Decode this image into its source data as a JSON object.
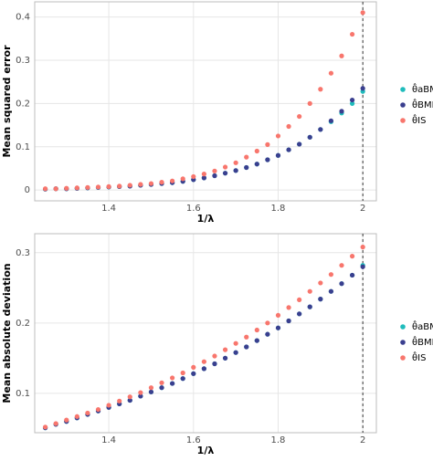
{
  "chart_data": [
    {
      "type": "scatter",
      "x_label": "1/λ",
      "y_label": "Mean squared error",
      "x": [
        1.25,
        1.275,
        1.3,
        1.325,
        1.35,
        1.375,
        1.4,
        1.425,
        1.45,
        1.475,
        1.5,
        1.525,
        1.55,
        1.575,
        1.6,
        1.625,
        1.65,
        1.675,
        1.7,
        1.725,
        1.75,
        1.775,
        1.8,
        1.825,
        1.85,
        1.875,
        1.9,
        1.925,
        1.95,
        1.975,
        2
      ],
      "series": [
        {
          "name": "θ̂aBMM",
          "color": "#1fbcbc",
          "values": [
            0.002,
            0.003,
            0.003,
            0.004,
            0.005,
            0.006,
            0.007,
            0.008,
            0.009,
            0.011,
            0.013,
            0.015,
            0.017,
            0.02,
            0.024,
            0.028,
            0.033,
            0.039,
            0.045,
            0.052,
            0.06,
            0.07,
            0.08,
            0.093,
            0.106,
            0.122,
            0.14,
            0.158,
            0.178,
            0.2,
            0.228
          ]
        },
        {
          "name": "θ̂BMM",
          "color": "#3a3f8f",
          "values": [
            0.002,
            0.003,
            0.003,
            0.004,
            0.005,
            0.006,
            0.007,
            0.008,
            0.009,
            0.011,
            0.013,
            0.015,
            0.017,
            0.02,
            0.024,
            0.028,
            0.033,
            0.039,
            0.045,
            0.052,
            0.06,
            0.07,
            0.08,
            0.093,
            0.106,
            0.122,
            0.14,
            0.16,
            0.182,
            0.208,
            0.235
          ]
        },
        {
          "name": "θ̂IS",
          "color": "#f8766d",
          "values": [
            0.003,
            0.003,
            0.004,
            0.005,
            0.006,
            0.007,
            0.008,
            0.009,
            0.011,
            0.013,
            0.015,
            0.018,
            0.021,
            0.026,
            0.031,
            0.037,
            0.044,
            0.053,
            0.063,
            0.076,
            0.09,
            0.105,
            0.125,
            0.147,
            0.17,
            0.2,
            0.233,
            0.27,
            0.31,
            0.36,
            0.41
          ]
        }
      ],
      "xlim": [
        1.225,
        2.032
      ],
      "xticks": [
        1.4,
        1.6,
        1.8,
        2
      ],
      "ylim": [
        -0.025,
        0.435
      ],
      "yticks": [
        0,
        0.1,
        0.2,
        0.3,
        0.4
      ],
      "vline": 2,
      "grid": true
    },
    {
      "type": "scatter",
      "x_label": "1/λ",
      "y_label": "Mean absolute deviation",
      "x": [
        1.25,
        1.275,
        1.3,
        1.325,
        1.35,
        1.375,
        1.4,
        1.425,
        1.45,
        1.475,
        1.5,
        1.525,
        1.55,
        1.575,
        1.6,
        1.625,
        1.65,
        1.675,
        1.7,
        1.725,
        1.75,
        1.775,
        1.8,
        1.825,
        1.85,
        1.875,
        1.9,
        1.925,
        1.95,
        1.975,
        2
      ],
      "series": [
        {
          "name": "θ̂aBMM",
          "color": "#1fbcbc",
          "values": [
            0.051,
            0.056,
            0.06,
            0.065,
            0.07,
            0.075,
            0.08,
            0.085,
            0.09,
            0.096,
            0.102,
            0.108,
            0.114,
            0.121,
            0.128,
            0.135,
            0.142,
            0.15,
            0.158,
            0.166,
            0.175,
            0.184,
            0.193,
            0.203,
            0.213,
            0.223,
            0.234,
            0.245,
            0.256,
            0.268,
            0.282
          ]
        },
        {
          "name": "θ̂BMM",
          "color": "#3a3f8f",
          "values": [
            0.051,
            0.056,
            0.06,
            0.065,
            0.07,
            0.075,
            0.08,
            0.085,
            0.09,
            0.096,
            0.102,
            0.108,
            0.114,
            0.121,
            0.128,
            0.135,
            0.142,
            0.15,
            0.158,
            0.166,
            0.175,
            0.184,
            0.193,
            0.203,
            0.213,
            0.223,
            0.234,
            0.245,
            0.256,
            0.268,
            0.28
          ]
        },
        {
          "name": "θ̂IS",
          "color": "#f8766d",
          "values": [
            0.052,
            0.057,
            0.062,
            0.067,
            0.072,
            0.077,
            0.083,
            0.089,
            0.095,
            0.101,
            0.108,
            0.115,
            0.122,
            0.129,
            0.137,
            0.145,
            0.153,
            0.162,
            0.171,
            0.18,
            0.19,
            0.2,
            0.211,
            0.222,
            0.233,
            0.245,
            0.257,
            0.269,
            0.282,
            0.295,
            0.308
          ]
        }
      ],
      "xlim": [
        1.225,
        2.032
      ],
      "xticks": [
        1.4,
        1.6,
        1.8,
        2
      ],
      "ylim": [
        0.044,
        0.327
      ],
      "yticks": [
        0.1,
        0.2,
        0.3
      ],
      "vline": 2,
      "grid": true
    }
  ]
}
